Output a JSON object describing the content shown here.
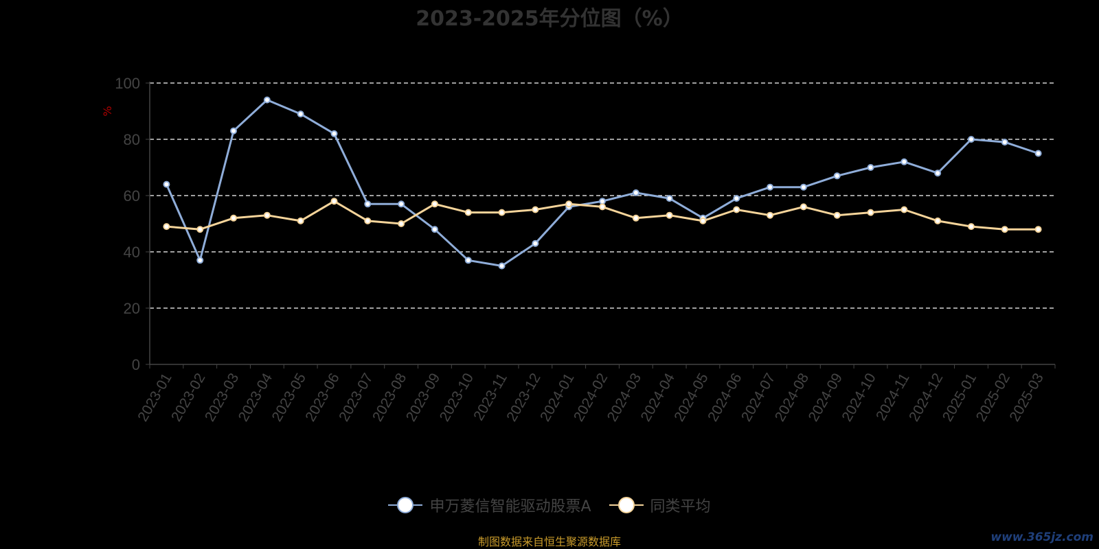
{
  "chart_data": {
    "type": "line",
    "title": "2023-2025年分位图（%）",
    "ylabel": "%",
    "ylim": [
      0,
      100
    ],
    "yticks": [
      0,
      20,
      40,
      60,
      80,
      100
    ],
    "grid": true,
    "legend_position": "bottom",
    "categories": [
      "2023-01",
      "2023-02",
      "2023-03",
      "2023-04",
      "2023-05",
      "2023-06",
      "2023-07",
      "2023-08",
      "2023-09",
      "2023-10",
      "2023-11",
      "2023-12",
      "2024-01",
      "2024-02",
      "2024-03",
      "2024-04",
      "2024-05",
      "2024-06",
      "2024-07",
      "2024-08",
      "2024-09",
      "2024-10",
      "2024-11",
      "2024-12",
      "2025-01",
      "2025-02",
      "2025-03"
    ],
    "series": [
      {
        "name": "申万菱信智能驱动股票A",
        "color": "#8fadd9",
        "values": [
          64,
          37,
          83,
          94,
          89,
          82,
          57,
          57,
          48,
          37,
          35,
          43,
          56,
          58,
          61,
          59,
          52,
          59,
          63,
          63,
          67,
          70,
          72,
          68,
          80,
          79,
          75
        ]
      },
      {
        "name": "同类平均",
        "color": "#f5d49a",
        "values": [
          49,
          48,
          52,
          53,
          51,
          58,
          51,
          50,
          57,
          54,
          54,
          55,
          57,
          56,
          52,
          53,
          51,
          55,
          53,
          56,
          53,
          54,
          55,
          51,
          49,
          48,
          48
        ]
      }
    ]
  },
  "footer": {
    "source": "制图数据来自恒生聚源数据库",
    "watermark": "www.365jz.com"
  }
}
